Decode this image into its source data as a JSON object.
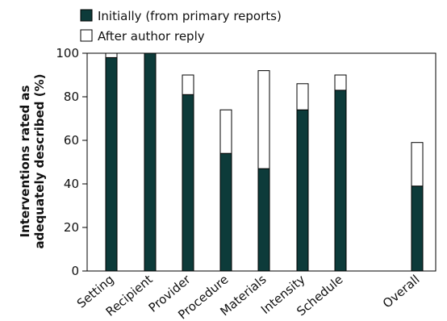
{
  "chart_data": {
    "type": "bar",
    "stacked": true,
    "categories": [
      "Setting",
      "Recipient",
      "Provider",
      "Procedure",
      "Materials",
      "Intensity",
      "Schedule",
      "Overall"
    ],
    "series": [
      {
        "name": "Initially (from primary reports)",
        "values": [
          98,
          100,
          81,
          54,
          47,
          74,
          83,
          39
        ],
        "color": "#0d3b3a"
      },
      {
        "name": "After author reply",
        "values": [
          2,
          0,
          9,
          20,
          45,
          12,
          7,
          20
        ],
        "color": "#ffffff"
      }
    ],
    "ylabel_line1": "Interventions rated as",
    "ylabel_line2": "adequately described (%)",
    "ylim": [
      0,
      100
    ],
    "yticks": [
      0,
      20,
      40,
      60,
      80,
      100
    ],
    "legend_position": "top-left",
    "grid": false
  }
}
